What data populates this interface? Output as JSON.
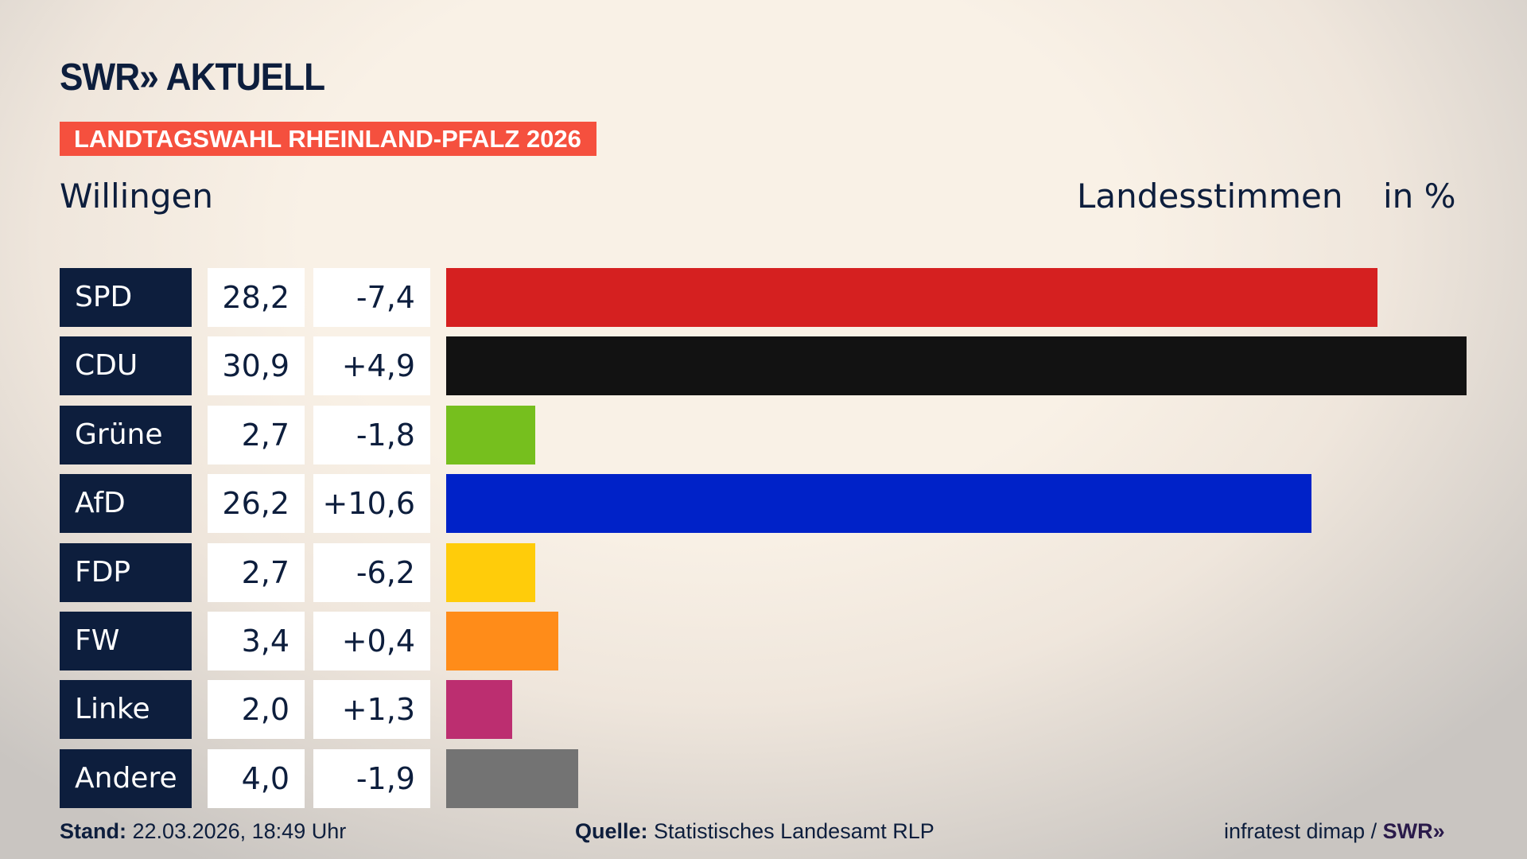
{
  "header": {
    "logo": "SWR» AKTUELL",
    "banner": "LANDTAGSWAHL RHEINLAND-PFALZ 2026",
    "place": "Willingen",
    "metric": "Landesstimmen",
    "unit": "in %"
  },
  "chart_data": {
    "type": "bar",
    "orientation": "horizontal",
    "xlim": [
      0,
      30.9
    ],
    "categories": [
      "SPD",
      "CDU",
      "Grüne",
      "AfD",
      "FDP",
      "FW",
      "Linke",
      "Andere"
    ],
    "values": [
      28.2,
      30.9,
      2.7,
      26.2,
      2.7,
      3.4,
      2.0,
      4.0
    ],
    "value_labels": [
      "28,2",
      "30,9",
      "2,7",
      "26,2",
      "2,7",
      "3,4",
      "2,0",
      "4,0"
    ],
    "diff_labels": [
      "-7,4",
      "+4,9",
      "-1,8",
      "+10,6",
      "-6,2",
      "+0,4",
      "+1,3",
      "-1,9"
    ],
    "diffs": [
      -7.4,
      4.9,
      -1.8,
      10.6,
      -6.2,
      0.4,
      1.3,
      -1.9
    ],
    "colors": [
      "#d52020",
      "#121212",
      "#76bf1e",
      "#0022c8",
      "#ffcc0a",
      "#ff8c19",
      "#bc2e70",
      "#737373"
    ]
  },
  "footer": {
    "stand_label": "Stand:",
    "stand_value": "22.03.2026, 18:49 Uhr",
    "source_label": "Quelle:",
    "source_value": "Statistisches Landesamt RLP",
    "credit": "infratest dimap / ",
    "credit_logo": "SWR»"
  }
}
